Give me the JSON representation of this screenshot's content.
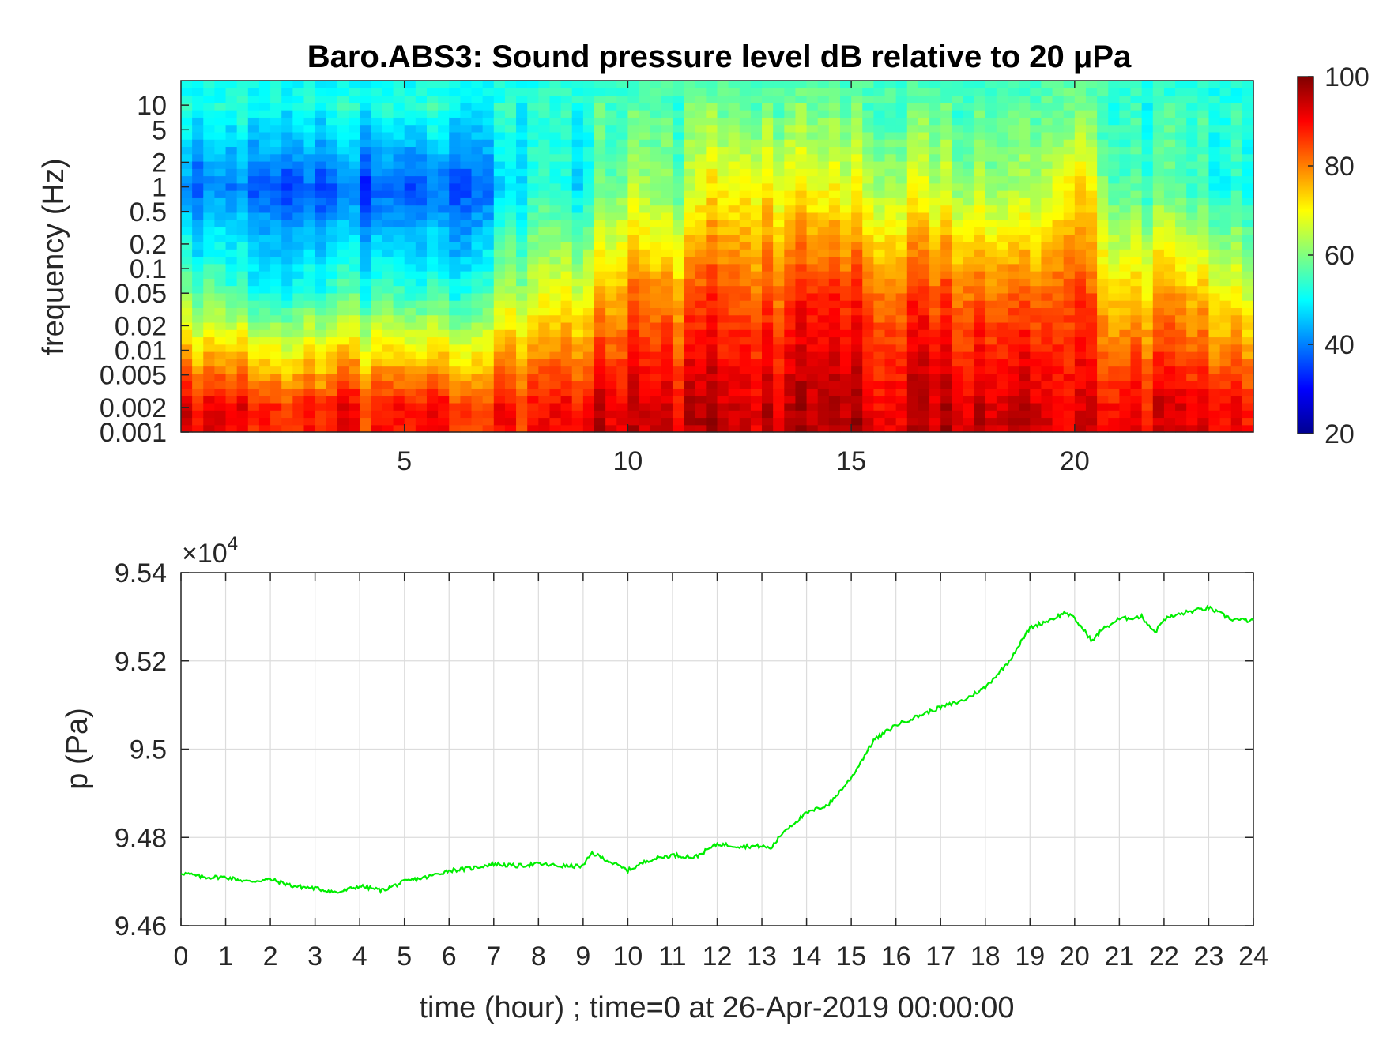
{
  "chart_data": [
    {
      "type": "heatmap",
      "title": "Baro.ABS3: Sound pressure level dB relative to 20 μPa",
      "xlabel": "",
      "ylabel": "frequency (Hz)",
      "xlim": [
        0,
        24
      ],
      "x_ticks": [
        "5",
        "10",
        "15",
        "20"
      ],
      "y_scale": "log",
      "ylim": [
        0.001,
        20
      ],
      "y_ticks": [
        "0.001",
        "0.002",
        "0.005",
        "0.01",
        "0.02",
        "0.05",
        "0.1",
        "0.2",
        "0.5",
        "1",
        "2",
        "5",
        "10"
      ],
      "colorbar": {
        "colormap": "jet",
        "range": [
          20,
          100
        ],
        "ticks": [
          "20",
          "40",
          "60",
          "80",
          "100"
        ]
      },
      "approx_levels_db": {
        "x_hours": [
          0,
          2,
          4,
          6,
          7,
          8,
          9,
          10,
          11,
          12,
          13,
          14,
          15,
          16,
          17,
          18,
          19,
          20,
          21,
          22,
          23,
          24
        ],
        "low_band_0p002Hz": [
          92,
          88,
          88,
          88,
          88,
          90,
          92,
          93,
          92,
          94,
          93,
          94,
          94,
          93,
          94,
          93,
          93,
          92,
          92,
          91,
          90,
          88
        ],
        "mid_band_0p05Hz": [
          60,
          52,
          55,
          52,
          60,
          68,
          70,
          80,
          78,
          84,
          82,
          86,
          85,
          84,
          83,
          82,
          80,
          86,
          74,
          76,
          72,
          65
        ],
        "high_band_1Hz": [
          40,
          38,
          36,
          36,
          42,
          55,
          50,
          64,
          58,
          70,
          70,
          68,
          66,
          66,
          64,
          62,
          60,
          74,
          58,
          56,
          52,
          50
        ],
        "top_band_10Hz": [
          52,
          52,
          52,
          52,
          52,
          54,
          54,
          56,
          56,
          58,
          58,
          58,
          57,
          57,
          56,
          56,
          56,
          60,
          55,
          54,
          53,
          52
        ]
      },
      "colors": {
        "jet_low": "#00008f",
        "jet_high": "#800000"
      }
    },
    {
      "type": "line",
      "title": "",
      "xlabel": "time (hour) ; time=0 at 26-Apr-2019 00:00:00",
      "ylabel": "p (Pa)",
      "exponent_label": "×10",
      "exponent_power": "4",
      "xlim": [
        0,
        24
      ],
      "ylim": [
        9.46,
        9.54
      ],
      "x_ticks": [
        "0",
        "1",
        "2",
        "3",
        "4",
        "5",
        "6",
        "7",
        "8",
        "9",
        "10",
        "11",
        "12",
        "13",
        "14",
        "15",
        "16",
        "17",
        "18",
        "19",
        "20",
        "21",
        "22",
        "23",
        "24"
      ],
      "y_ticks": [
        "9.46",
        "9.48",
        "9.5",
        "9.52",
        "9.54"
      ],
      "grid": true,
      "series": [
        {
          "color": "#00ee00",
          "x": [
            0,
            0.5,
            1,
            1.5,
            2,
            2.5,
            3,
            3.5,
            4,
            4.5,
            5,
            5.5,
            6,
            6.5,
            7,
            7.5,
            8,
            8.5,
            9,
            9.2,
            9.5,
            10,
            10.5,
            11,
            11.5,
            12,
            12.5,
            13,
            13.2,
            13.5,
            14,
            14.5,
            15,
            15.5,
            16,
            16.5,
            17,
            17.5,
            18,
            18.5,
            19,
            19.5,
            19.8,
            20,
            20.2,
            20.4,
            20.6,
            21,
            21.5,
            21.8,
            22,
            22.5,
            23,
            23.5,
            24
          ],
          "y": [
            9.472,
            9.471,
            9.471,
            9.47,
            9.4705,
            9.469,
            9.4685,
            9.4675,
            9.469,
            9.468,
            9.47,
            9.471,
            9.4725,
            9.473,
            9.474,
            9.4735,
            9.474,
            9.4735,
            9.4735,
            9.4765,
            9.475,
            9.4725,
            9.475,
            9.476,
            9.4755,
            9.4785,
            9.478,
            9.478,
            9.4775,
            9.4815,
            9.4855,
            9.4875,
            9.4935,
            9.502,
            9.5055,
            9.5075,
            9.5095,
            9.511,
            9.514,
            9.5195,
            9.5275,
            9.5295,
            9.531,
            9.5295,
            9.527,
            9.5245,
            9.527,
            9.5295,
            9.53,
            9.5265,
            9.5295,
            9.531,
            9.532,
            9.5295,
            9.529
          ]
        }
      ]
    }
  ]
}
